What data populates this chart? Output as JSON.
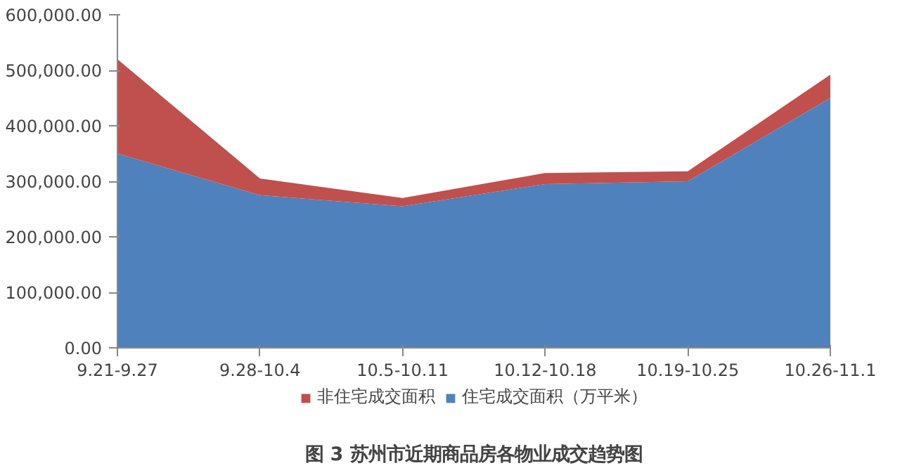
{
  "chart_data": {
    "type": "area",
    "stacked": true,
    "title": "图 3 苏州市近期商品房各物业成交趋势图",
    "categories": [
      "9.21-9.27",
      "9.28-10.4",
      "10.5-10.11",
      "10.12-10.18",
      "10.19-10.25",
      "10.26-11.1"
    ],
    "series": [
      {
        "name": "住宅成交面积（万平米）",
        "color": "#4f81bd",
        "values": [
          350000,
          275000,
          255000,
          295000,
          300000,
          450000
        ]
      },
      {
        "name": "非住宅成交面积",
        "color": "#c0504d",
        "values": [
          170000,
          30000,
          15000,
          20000,
          18000,
          42000
        ]
      }
    ],
    "ylim": [
      0,
      600000
    ],
    "yticks": [
      {
        "value": 0,
        "label": "0.00"
      },
      {
        "value": 100000,
        "label": "100,000.00"
      },
      {
        "value": 200000,
        "label": "200,000.00"
      },
      {
        "value": 300000,
        "label": "300,000.00"
      },
      {
        "value": 400000,
        "label": "400,000.00"
      },
      {
        "value": 500000,
        "label": "500,000.00"
      },
      {
        "value": 600000,
        "label": "600,000.00"
      }
    ],
    "grid": false,
    "legend": "bottom"
  }
}
